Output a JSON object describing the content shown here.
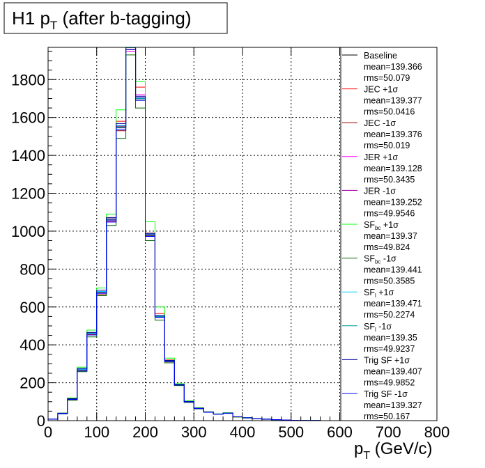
{
  "chart_data": {
    "type": "line",
    "title": "H1 p",
    "title_sub": "T",
    "title_suffix": " (after b-tagging)",
    "xlabel": "p",
    "xlabel_sub": "T",
    "xlabel_suffix": " (GeV/c)",
    "ylabel": "",
    "xlim": [
      0,
      800
    ],
    "ylim": [
      0,
      1970
    ],
    "grid": true,
    "legend_position": "right",
    "x_ticks": [
      0,
      100,
      200,
      300,
      400,
      500,
      600,
      700,
      800
    ],
    "y_ticks": [
      0,
      200,
      400,
      600,
      800,
      1000,
      1200,
      1400,
      1600,
      1800
    ],
    "bin_edges": [
      0,
      20,
      40,
      60,
      80,
      100,
      120,
      140,
      160,
      180,
      200,
      220,
      240,
      260,
      280,
      300,
      320,
      340,
      360,
      380,
      400,
      420,
      440,
      460,
      480,
      500,
      520,
      540,
      560,
      580,
      600
    ],
    "series": [
      {
        "name": "Baseline",
        "sub": "",
        "suffix": "",
        "color": "#000000",
        "values": [
          8,
          38,
          115,
          270,
          460,
          680,
          1060,
          1550,
          1970,
          1700,
          980,
          550,
          315,
          190,
          100,
          65,
          45,
          35,
          40,
          20,
          15,
          10,
          8,
          5,
          3,
          2,
          1,
          1,
          0,
          0
        ],
        "mean": "mean=139.366",
        "rms": "rms=50.079"
      },
      {
        "name": "JEC +1σ",
        "sub": "",
        "suffix": "",
        "color": "#ff0000",
        "values": [
          8,
          38,
          110,
          265,
          455,
          675,
          1070,
          1580,
          1985,
          1760,
          990,
          565,
          320,
          190,
          100,
          65,
          45,
          35,
          40,
          20,
          15,
          10,
          8,
          5,
          3,
          2,
          1,
          1,
          0,
          0
        ],
        "mean": "mean=139.377",
        "rms": "rms=50.0416"
      },
      {
        "name": "JEC -1σ",
        "sub": "",
        "suffix": "",
        "color": "#990000",
        "values": [
          8,
          40,
          118,
          275,
          465,
          665,
          1050,
          1530,
          1960,
          1690,
          975,
          545,
          310,
          188,
          98,
          64,
          45,
          35,
          40,
          20,
          15,
          10,
          8,
          5,
          3,
          2,
          1,
          1,
          0,
          0
        ],
        "mean": "mean=139.376",
        "rms": "rms=50.019"
      },
      {
        "name": "JER +1σ",
        "sub": "",
        "suffix": "",
        "color": "#ff00ff",
        "values": [
          9,
          40,
          112,
          268,
          458,
          672,
          1055,
          1545,
          1950,
          1720,
          985,
          555,
          318,
          192,
          102,
          66,
          46,
          35,
          40,
          21,
          15,
          11,
          8,
          5,
          3,
          2,
          1,
          1,
          0,
          0
        ],
        "mean": "mean=139.128",
        "rms": "rms=50.3435"
      },
      {
        "name": "JER -1σ",
        "sub": "",
        "suffix": "",
        "color": "#990099",
        "values": [
          8,
          38,
          116,
          272,
          462,
          678,
          1062,
          1555,
          1975,
          1705,
          982,
          552,
          316,
          190,
          100,
          65,
          45,
          35,
          40,
          20,
          15,
          10,
          8,
          5,
          3,
          2,
          1,
          1,
          0,
          0
        ],
        "mean": "mean=139.252",
        "rms": "rms=49.9546"
      },
      {
        "name": "SF",
        "sub": "bc",
        "suffix": " +1σ",
        "color": "#00ff00",
        "values": [
          8,
          40,
          120,
          282,
          478,
          700,
          1090,
          1640,
          1990,
          1790,
          1050,
          600,
          330,
          195,
          105,
          68,
          47,
          36,
          42,
          21,
          16,
          10,
          8,
          5,
          3,
          2,
          1,
          1,
          0,
          0
        ],
        "mean": "mean=139.37",
        "rms": "rms=49.824"
      },
      {
        "name": "SF",
        "sub": "bc",
        "suffix": " -1σ",
        "color": "#006600",
        "values": [
          8,
          36,
          108,
          258,
          442,
          660,
          1030,
          1490,
          1930,
          1650,
          950,
          530,
          305,
          185,
          96,
          62,
          44,
          34,
          38,
          19,
          14,
          10,
          7,
          5,
          3,
          2,
          1,
          1,
          0,
          0
        ],
        "mean": "mean=139.441",
        "rms": "rms=50.3585"
      },
      {
        "name": "SF",
        "sub": "l",
        "suffix": " +1σ",
        "color": "#00ccff",
        "values": [
          8,
          38,
          115,
          272,
          462,
          682,
          1065,
          1558,
          1972,
          1702,
          985,
          552,
          316,
          190,
          100,
          65,
          45,
          35,
          40,
          20,
          15,
          10,
          8,
          5,
          3,
          2,
          1,
          1,
          0,
          0
        ],
        "mean": "mean=139.471",
        "rms": "rms=50.2274"
      },
      {
        "name": "SF",
        "sub": "l",
        "suffix": " -1σ",
        "color": "#009999",
        "values": [
          8,
          38,
          114,
          268,
          458,
          678,
          1058,
          1545,
          1968,
          1698,
          978,
          548,
          314,
          189,
          99,
          64,
          45,
          35,
          40,
          20,
          15,
          10,
          8,
          5,
          3,
          2,
          1,
          1,
          0,
          0
        ],
        "mean": "mean=139.35",
        "rms": "rms=49.9237"
      },
      {
        "name": "Trig SF +1σ",
        "sub": "",
        "suffix": "",
        "color": "#000099",
        "values": [
          8,
          39,
          116,
          275,
          466,
          688,
          1072,
          1568,
          1980,
          1712,
          988,
          555,
          318,
          191,
          101,
          66,
          46,
          35,
          40,
          20,
          15,
          10,
          8,
          5,
          3,
          2,
          1,
          1,
          0,
          0
        ],
        "mean": "mean=139.407",
        "rms": "rms=49.9852"
      },
      {
        "name": "Trig SF -1σ",
        "sub": "",
        "suffix": "",
        "color": "#0000ff",
        "values": [
          8,
          37,
          112,
          262,
          452,
          672,
          1048,
          1535,
          1958,
          1690,
          972,
          545,
          312,
          188,
          99,
          64,
          44,
          34,
          39,
          20,
          15,
          10,
          8,
          5,
          3,
          2,
          1,
          1,
          0,
          0
        ],
        "mean": "mean=139.327",
        "rms": "rms=50.167"
      }
    ]
  }
}
